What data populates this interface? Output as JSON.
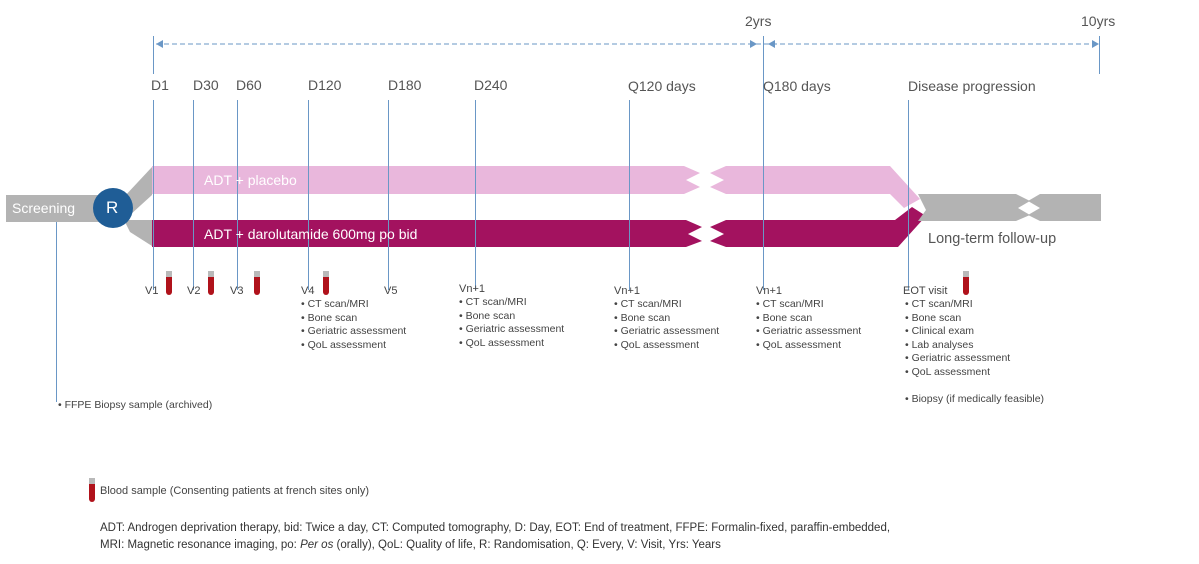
{
  "timeline": {
    "top_marks": [
      "2yrs",
      "10yrs"
    ],
    "timepoints": [
      "D1",
      "D30",
      "D60",
      "D120",
      "D180",
      "D240",
      "Q120 days",
      "Q180 days",
      "Disease progression"
    ]
  },
  "screening": "Screening",
  "randomisation": "R",
  "arms": {
    "placebo": "ADT + placebo",
    "active": "ADT + darolutamide 600mg po bid",
    "followup": "Long-term follow-up"
  },
  "visits": {
    "v1": "V1",
    "v2": "V2",
    "v3": "V3",
    "v4": "V4",
    "v5": "V5",
    "vn1": "Vn+1",
    "vn2": "Vn+1",
    "vn3": "Vn+1",
    "eot": "EOT visit"
  },
  "assessments": {
    "v4": [
      "CT scan/MRI",
      "Bone scan",
      "Geriatric assessment",
      "QoL assessment"
    ],
    "vn1": [
      "CT scan/MRI",
      "Bone scan",
      "Geriatric assessment",
      "QoL assessment"
    ],
    "vn2": [
      "CT scan/MRI",
      "Bone scan",
      "Geriatric assessment",
      "QoL assessment"
    ],
    "vn3": [
      "CT scan/MRI",
      "Bone scan",
      "Geriatric assessment",
      "QoL assessment"
    ],
    "eot": [
      "CT scan/MRI",
      "Bone scan",
      "Clinical exam",
      "Lab analyses",
      "Geriatric assessment",
      "QoL assessment"
    ],
    "eot_extra": "Biopsy (if medically feasible)"
  },
  "biopsy_note": "FFPE Biopsy sample (archived)",
  "legend": {
    "blood_sample": "Blood sample (Consenting patients at french sites only)"
  },
  "abbreviations": {
    "line1": "ADT: Androgen deprivation therapy, bid: Twice a day, CT: Computed tomography, D: Day, EOT: End of treatment, FFPE: Formalin-fixed, paraffin-embedded,",
    "line2_a": "MRI: Magnetic resonance imaging, po: ",
    "line2_b": "Per os",
    "line2_c": " (orally), QoL: Quality of life, R: Randomisation, Q: Every, V: Visit, Yrs: Years"
  },
  "colors": {
    "placebo": "#e9b7dc",
    "active": "#a3125f",
    "gray_band": "#b3b3b3",
    "randomisation": "#1f5d96",
    "blood": "#b0121b",
    "timeline_line": "#6a97c6"
  }
}
